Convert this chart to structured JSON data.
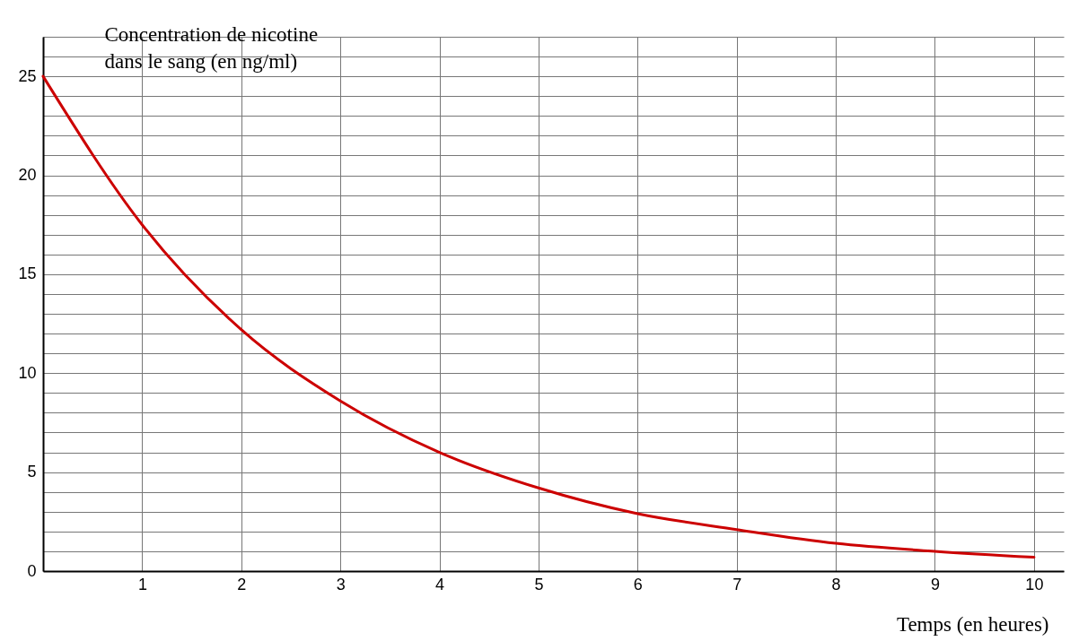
{
  "chart_data": {
    "type": "line",
    "ylabel": "Concentration de nicotine dans le sang (en ng/ml)",
    "xlabel": "Temps (en heures)",
    "x": [
      0,
      1,
      2,
      3,
      4,
      5,
      6,
      7,
      8,
      9,
      10
    ],
    "series": [
      {
        "color": "#cc0000",
        "values": [
          25,
          17.5,
          12.2,
          8.6,
          6.0,
          4.2,
          2.9,
          2.1,
          1.4,
          1.0,
          0.7
        ]
      }
    ],
    "xlim": [
      0,
      10.3
    ],
    "ylim": [
      0,
      27
    ],
    "xticks": [
      {
        "value": 0,
        "label": null
      },
      1,
      2,
      3,
      4,
      5,
      6,
      7,
      8,
      9,
      10
    ],
    "yticks": [
      0,
      {
        "value": 1,
        "label": null
      },
      {
        "value": 2,
        "label": null
      },
      {
        "value": 3,
        "label": null
      },
      {
        "value": 4,
        "label": null
      },
      5,
      {
        "value": 6,
        "label": null
      },
      {
        "value": 7,
        "label": null
      },
      {
        "value": 8,
        "label": null
      },
      {
        "value": 9,
        "label": null
      },
      10,
      {
        "value": 11,
        "label": null
      },
      {
        "value": 12,
        "label": null
      },
      {
        "value": 13,
        "label": null
      },
      {
        "value": 14,
        "label": null
      },
      15,
      {
        "value": 16,
        "label": null
      },
      {
        "value": 17,
        "label": null
      },
      {
        "value": 18,
        "label": null
      },
      {
        "value": 19,
        "label": null
      },
      20,
      {
        "value": 21,
        "label": null
      },
      {
        "value": 22,
        "label": null
      },
      {
        "value": 23,
        "label": null
      },
      {
        "value": 24,
        "label": null
      },
      25,
      {
        "value": 26,
        "label": null
      },
      {
        "value": 27,
        "label": null
      }
    ],
    "grid": true,
    "marker": "none",
    "line_style": "solid"
  }
}
